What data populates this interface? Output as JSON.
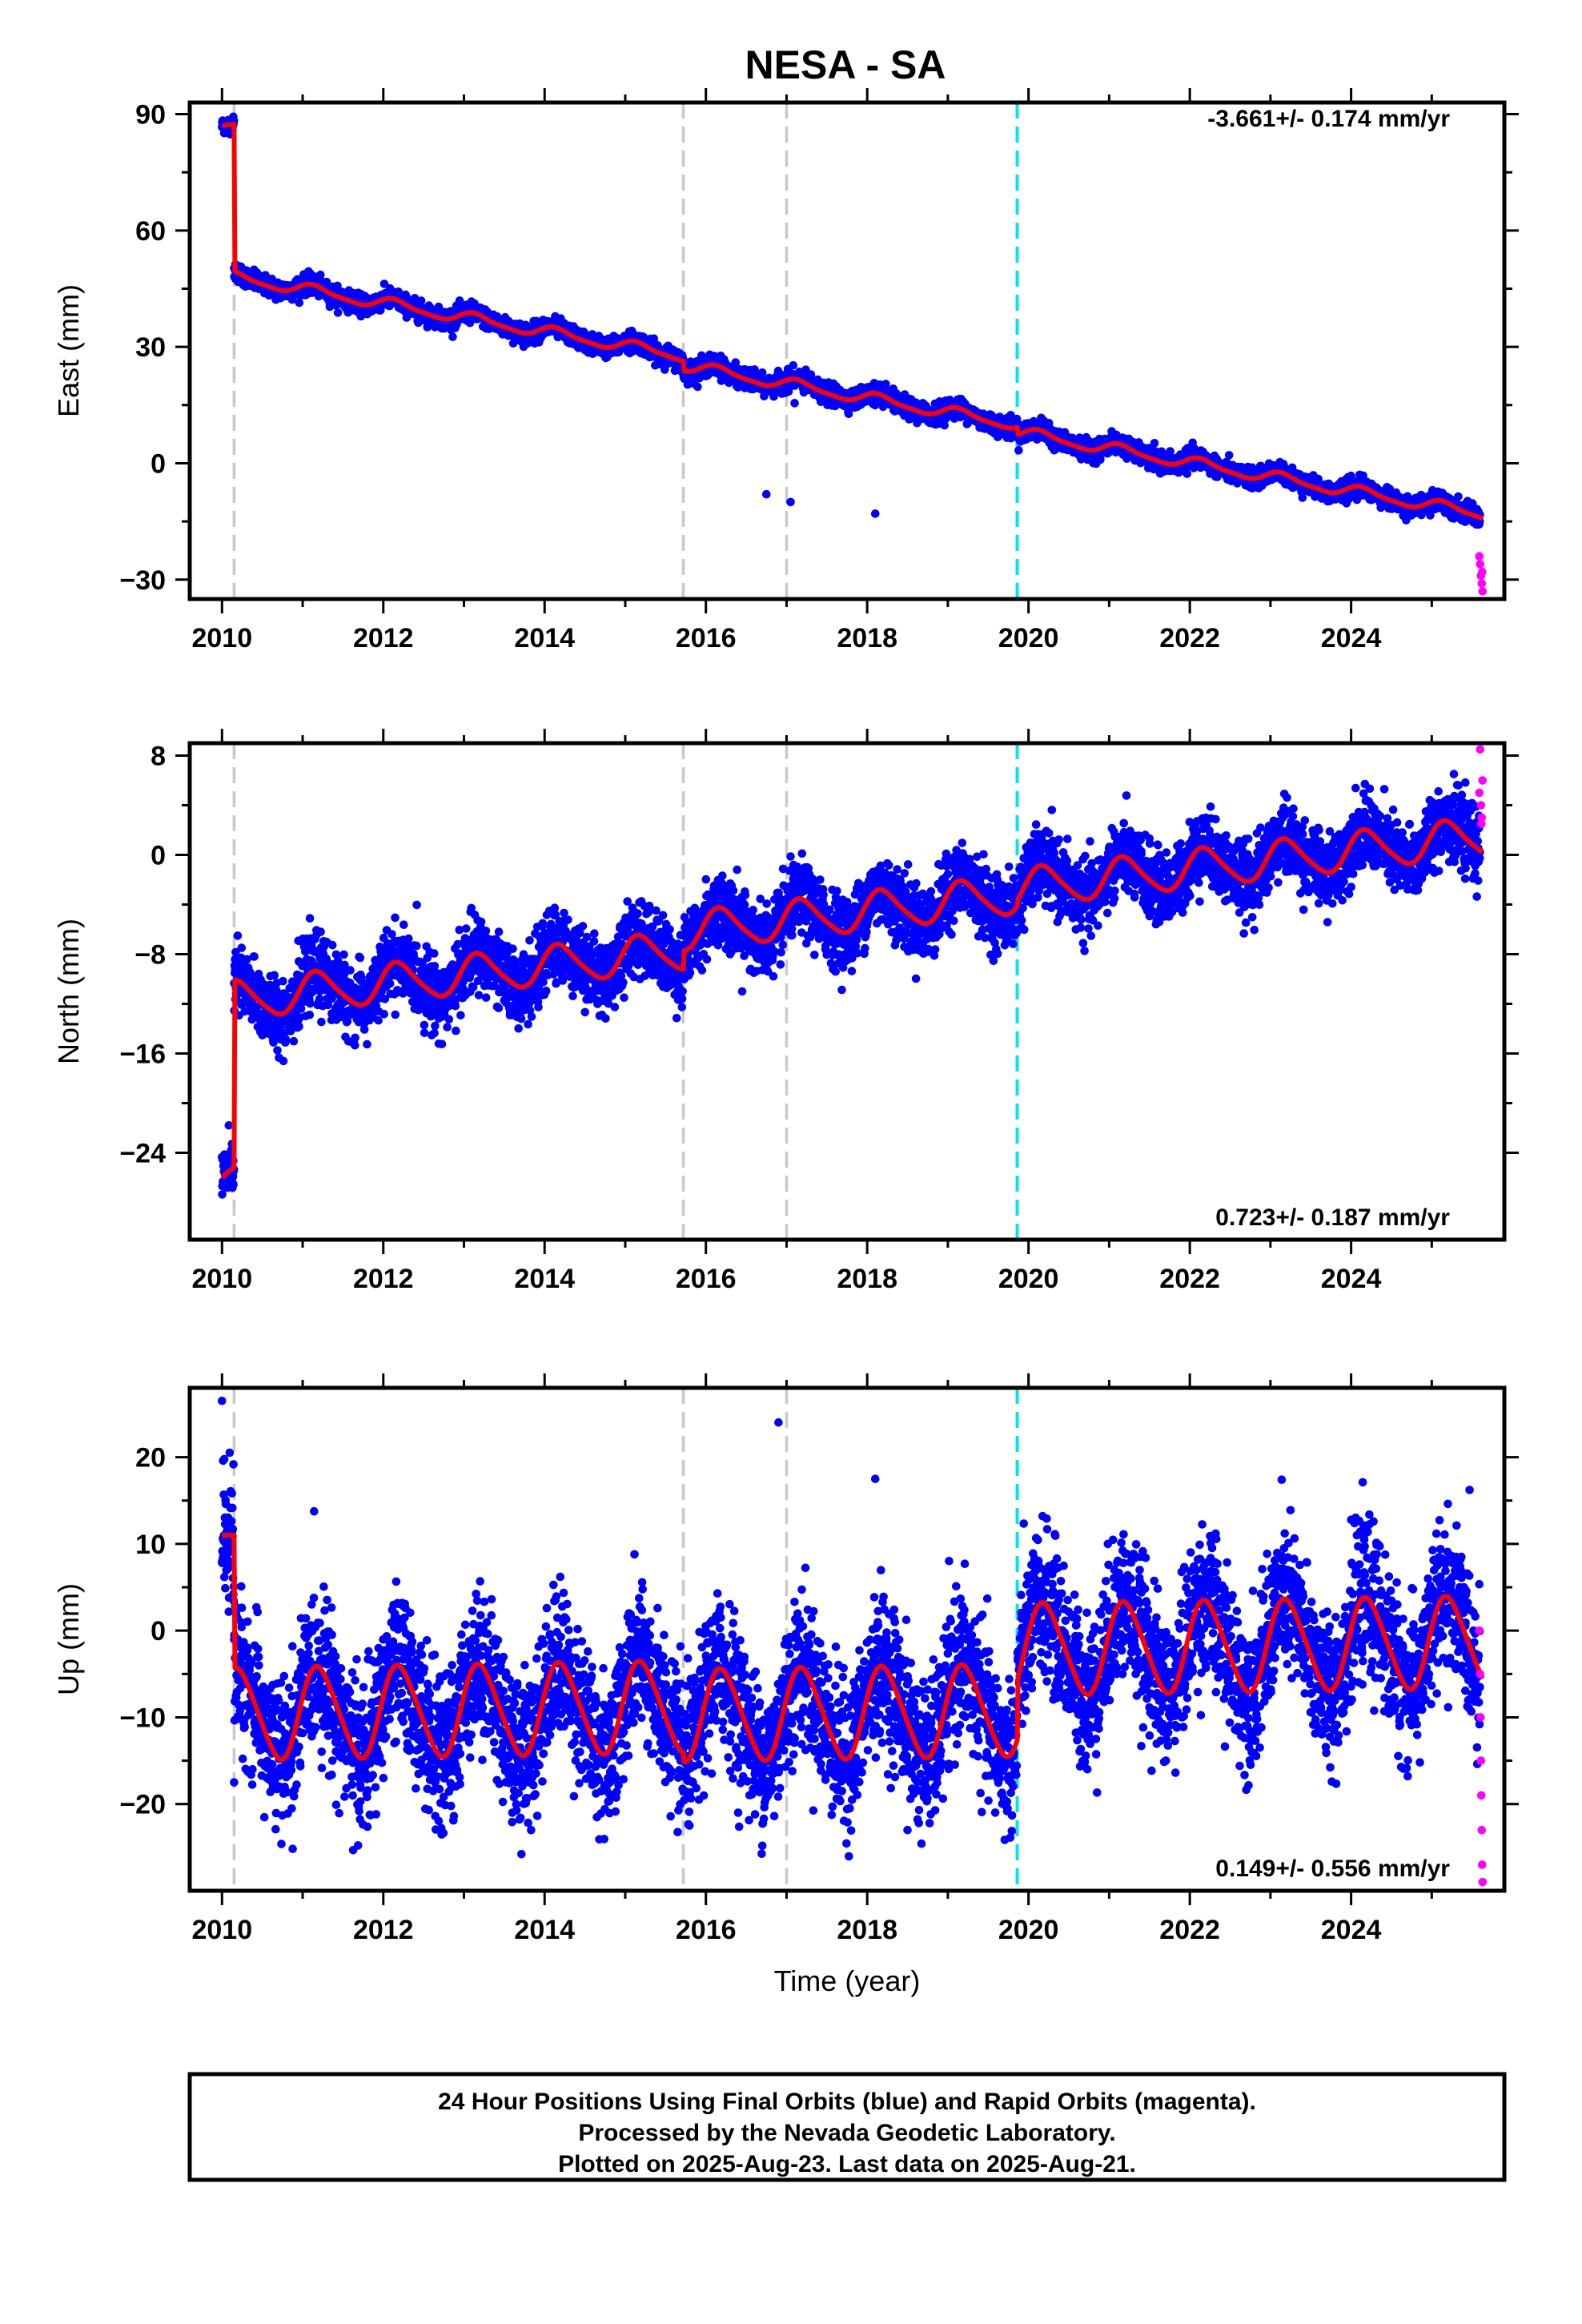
{
  "chart_data": [
    {
      "type": "scatter",
      "title": "NESA - SA",
      "ylabel": "East (mm)",
      "xlabel": "",
      "xlim": [
        2009.6,
        2025.9
      ],
      "ylim": [
        -35,
        93
      ],
      "xticks": [
        2010,
        2012,
        2014,
        2016,
        2018,
        2020,
        2022,
        2024
      ],
      "xtick_labels": [
        "2010",
        "2012",
        "2014",
        "2016",
        "2018",
        "2020",
        "2022",
        "2024"
      ],
      "yticks": [
        -30,
        0,
        30,
        60,
        90
      ],
      "ytick_labels": [
        "−30",
        "0",
        "30",
        "60",
        "90"
      ],
      "rate_text": "-3.661+/- 0.174 mm/yr",
      "rate_position": "top-right",
      "grid": false,
      "events": [
        {
          "x": 2010.15,
          "color": "#c8c8c8"
        },
        {
          "x": 2015.72,
          "color": "#c8c8c8"
        },
        {
          "x": 2017.0,
          "color": "#c8c8c8"
        },
        {
          "x": 2019.86,
          "color": "#00e5ee"
        }
      ],
      "model": {
        "start": 2010.0,
        "end": 2025.63,
        "rate": -3.661,
        "offset_y": 15.5,
        "steps": [
          {
            "x": 2010.15,
            "dy": -30
          },
          {
            "x": 2015.72,
            "dy": -2.5
          },
          {
            "x": 2019.86,
            "dy": -2.0
          }
        ],
        "annual_sin": 1.1,
        "annual_cos": 0.8,
        "semi_sin": 0.3,
        "semi_cos": 0.2,
        "pre_value": 87,
        "noise_sd": 1.2,
        "outliers": [
          [
            2016.2,
            24
          ],
          [
            2017.1,
            15.5
          ],
          [
            2016.75,
            -8
          ],
          [
            2017.05,
            -10
          ],
          [
            2018.1,
            -13
          ]
        ]
      },
      "series": [
        {
          "name": "Final Orbits",
          "color": "#0000ff",
          "kind": "points"
        },
        {
          "name": "Rapid Orbits",
          "color": "#ff00ff",
          "kind": "points",
          "values": [
            [
              2025.59,
              -24
            ],
            [
              2025.6,
              -26
            ],
            [
              2025.61,
              -29
            ],
            [
              2025.62,
              -31
            ],
            [
              2025.63,
              -33
            ],
            [
              2025.625,
              -28
            ]
          ]
        },
        {
          "name": "model",
          "color": "#ff0000",
          "kind": "line"
        }
      ]
    },
    {
      "type": "scatter",
      "title": "",
      "ylabel": "North (mm)",
      "xlabel": "",
      "xlim": [
        2009.6,
        2025.9
      ],
      "ylim": [
        -31,
        9
      ],
      "xticks": [
        2010,
        2012,
        2014,
        2016,
        2018,
        2020,
        2022,
        2024
      ],
      "xtick_labels": [
        "2010",
        "2012",
        "2014",
        "2016",
        "2018",
        "2020",
        "2022",
        "2024"
      ],
      "yticks": [
        -24,
        -16,
        -8,
        0,
        8
      ],
      "ytick_labels": [
        "−24",
        "−16",
        "−8",
        "0",
        "8"
      ],
      "rate_text": "0.723+/- 0.187 mm/yr",
      "rate_position": "bottom-right",
      "grid": false,
      "events": [
        {
          "x": 2010.15,
          "color": "#c8c8c8"
        },
        {
          "x": 2015.72,
          "color": "#c8c8c8"
        },
        {
          "x": 2017.0,
          "color": "#c8c8c8"
        },
        {
          "x": 2019.86,
          "color": "#00e5ee"
        }
      ],
      "model": {
        "start": 2010.0,
        "end": 2025.63,
        "rate": 0.723,
        "offset_y": -4.2,
        "steps": [
          {
            "x": 2010.15,
            "dy": 10
          },
          {
            "x": 2015.72,
            "dy": 1.5
          },
          {
            "x": 2019.86,
            "dy": 0.5
          }
        ],
        "annual_sin": 1.4,
        "annual_cos": 0.6,
        "semi_sin": 0.2,
        "semi_cos": 0.1,
        "pre_value": -26,
        "noise_sd": 1.4,
        "outliers": [
          [
            2016.45,
            -11
          ],
          [
            2016.3,
            -8
          ]
        ]
      },
      "series": [
        {
          "name": "Final Orbits",
          "color": "#0000ff",
          "kind": "points"
        },
        {
          "name": "Rapid Orbits",
          "color": "#ff00ff",
          "kind": "points",
          "values": [
            [
              2025.59,
              5
            ],
            [
              2025.6,
              8.5
            ],
            [
              2025.61,
              4
            ],
            [
              2025.62,
              3
            ],
            [
              2025.63,
              6
            ],
            [
              2025.615,
              2.5
            ]
          ]
        },
        {
          "name": "model",
          "color": "#ff0000",
          "kind": "line"
        }
      ]
    },
    {
      "type": "scatter",
      "title": "",
      "ylabel": "Up (mm)",
      "xlabel": "Time (year)",
      "xlim": [
        2009.6,
        2025.9
      ],
      "ylim": [
        -30,
        28
      ],
      "xticks": [
        2010,
        2012,
        2014,
        2016,
        2018,
        2020,
        2022,
        2024
      ],
      "xtick_labels": [
        "2010",
        "2012",
        "2014",
        "2016",
        "2018",
        "2020",
        "2022",
        "2024"
      ],
      "yticks": [
        -20,
        -10,
        0,
        10,
        20
      ],
      "ytick_labels": [
        "−20",
        "−10",
        "0",
        "10",
        "20"
      ],
      "rate_text": "0.149+/- 0.556 mm/yr",
      "rate_position": "bottom-right",
      "grid": false,
      "events": [
        {
          "x": 2010.15,
          "color": "#c8c8c8"
        },
        {
          "x": 2015.72,
          "color": "#c8c8c8"
        },
        {
          "x": 2017.0,
          "color": "#c8c8c8"
        },
        {
          "x": 2019.86,
          "color": "#00e5ee"
        }
      ],
      "model": {
        "start": 2010.0,
        "end": 2025.63,
        "rate": 0.149,
        "offset_y": -2.5,
        "steps": [
          {
            "x": 2015.72,
            "dy": -1.0
          },
          {
            "x": 2019.86,
            "dy": 7.0
          }
        ],
        "annual_sin": 5.0,
        "annual_cos": 1.5,
        "semi_sin": 0.5,
        "semi_cos": 0.3,
        "pre_value": 11,
        "noise_sd": 4.2,
        "outliers": [
          [
            2010.0,
            26.5
          ],
          [
            2016.9,
            24
          ],
          [
            2013.6,
            -21
          ],
          [
            2016.4,
            -21
          ],
          [
            2018.5,
            -23
          ],
          [
            2010.15,
            -17.5
          ],
          [
            2018.1,
            17.5
          ]
        ]
      },
      "series": [
        {
          "name": "Final Orbits",
          "color": "#0000ff",
          "kind": "points"
        },
        {
          "name": "Rapid Orbits",
          "color": "#ff00ff",
          "kind": "points",
          "values": [
            [
              2025.59,
              0
            ],
            [
              2025.6,
              -5
            ],
            [
              2025.605,
              -10
            ],
            [
              2025.61,
              -15
            ],
            [
              2025.615,
              -19
            ],
            [
              2025.62,
              -23
            ],
            [
              2025.625,
              -27
            ],
            [
              2025.63,
              -29
            ]
          ]
        },
        {
          "name": "model",
          "color": "#ff0000",
          "kind": "line"
        }
      ]
    }
  ],
  "footer": {
    "line1": "24 Hour Positions Using Final Orbits (blue) and Rapid Orbits (magenta).",
    "line2": "Processed by the Nevada Geodetic Laboratory.",
    "line3": "Plotted on 2025-Aug-23. Last data on 2025-Aug-21."
  }
}
